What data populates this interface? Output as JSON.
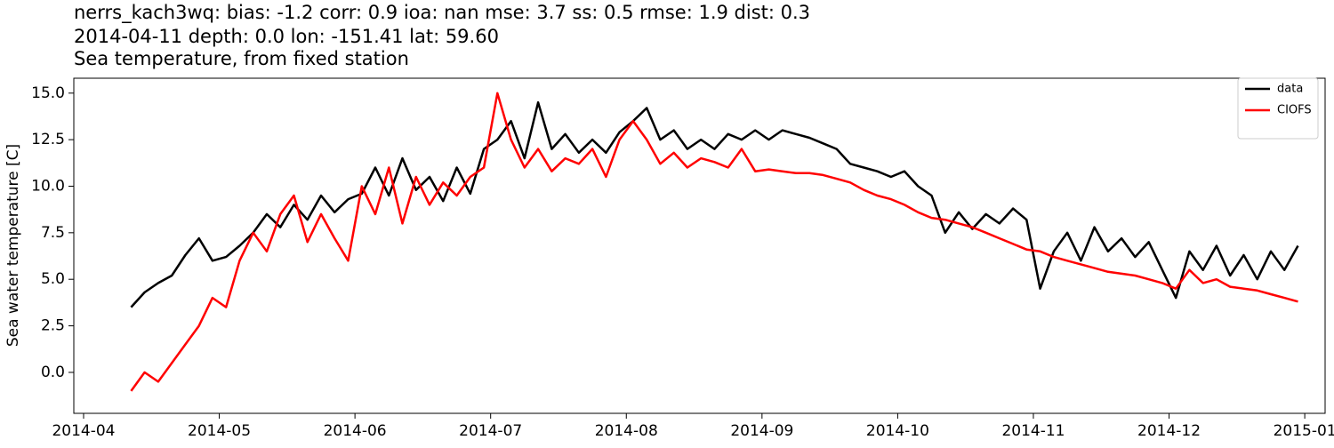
{
  "chart_data": {
    "type": "line",
    "title": "nerrs_kach3wq: bias: -1.2  corr: 0.9  ioa: nan  mse: 3.7  ss: 0.5  rmse: 1.9  dist: 0.3",
    "subtitle": "2014-04-11 depth: 0.0 lon: -151.41 lat: 59.60",
    "subtitle2": "Sea temperature, from fixed station",
    "y_label": "Sea water temperature [C]",
    "x": [
      0.35,
      0.45,
      0.55,
      0.65,
      0.75,
      0.85,
      0.95,
      1.05,
      1.15,
      1.25,
      1.35,
      1.45,
      1.55,
      1.65,
      1.75,
      1.85,
      1.95,
      2.05,
      2.15,
      2.25,
      2.35,
      2.45,
      2.55,
      2.65,
      2.75,
      2.85,
      2.95,
      3.05,
      3.15,
      3.25,
      3.35,
      3.45,
      3.55,
      3.65,
      3.75,
      3.85,
      3.95,
      4.05,
      4.15,
      4.25,
      4.35,
      4.45,
      4.55,
      4.65,
      4.75,
      4.85,
      4.95,
      5.05,
      5.15,
      5.25,
      5.35,
      5.45,
      5.55,
      5.65,
      5.75,
      5.85,
      5.95,
      6.05,
      6.15,
      6.25,
      6.35,
      6.45,
      6.55,
      6.65,
      6.75,
      6.85,
      6.95,
      7.05,
      7.15,
      7.25,
      7.35,
      7.45,
      7.55,
      7.65,
      7.75,
      7.85,
      7.95,
      8.05,
      8.15,
      8.25,
      8.35,
      8.45,
      8.55,
      8.65,
      8.75,
      8.85,
      8.95
    ],
    "series": [
      {
        "name": "data",
        "color": "#000000",
        "values": [
          3.5,
          4.3,
          4.8,
          5.2,
          6.3,
          7.2,
          6.0,
          6.2,
          6.8,
          7.5,
          8.5,
          7.8,
          9.0,
          8.2,
          9.5,
          8.6,
          9.3,
          9.6,
          11.0,
          9.5,
          11.5,
          9.8,
          10.5,
          9.2,
          11.0,
          9.6,
          12.0,
          12.5,
          13.5,
          11.5,
          14.5,
          12.0,
          12.8,
          11.8,
          12.5,
          11.8,
          12.9,
          13.5,
          14.2,
          12.5,
          13.0,
          12.0,
          12.5,
          12.0,
          12.8,
          12.5,
          13.0,
          12.5,
          13.0,
          12.8,
          12.6,
          12.3,
          12.0,
          11.2,
          11.0,
          10.8,
          10.5,
          10.8,
          10.0,
          9.5,
          7.5,
          8.6,
          7.7,
          8.5,
          8.0,
          8.8,
          8.2,
          4.5,
          6.5,
          7.5,
          6.0,
          7.8,
          6.5,
          7.2,
          6.2,
          7.0,
          5.5,
          4.0,
          6.5,
          5.5,
          6.8,
          5.2,
          6.3,
          5.0,
          6.5,
          5.5,
          6.8
        ]
      },
      {
        "name": "CIOFS",
        "color": "#ff0000",
        "values": [
          -1.0,
          0.0,
          -0.5,
          0.5,
          1.5,
          2.5,
          4.0,
          3.5,
          6.0,
          7.5,
          6.5,
          8.5,
          9.5,
          7.0,
          8.5,
          7.2,
          6.0,
          10.0,
          8.5,
          11.0,
          8.0,
          10.5,
          9.0,
          10.2,
          9.5,
          10.5,
          11.0,
          15.0,
          12.5,
          11.0,
          12.0,
          10.8,
          11.5,
          11.2,
          12.0,
          10.5,
          12.5,
          13.5,
          12.5,
          11.2,
          11.8,
          11.0,
          11.5,
          11.3,
          11.0,
          12.0,
          10.8,
          10.9,
          10.8,
          10.7,
          10.7,
          10.6,
          10.4,
          10.2,
          9.8,
          9.5,
          9.3,
          9.0,
          8.6,
          8.3,
          8.2,
          8.0,
          7.8,
          7.5,
          7.2,
          6.9,
          6.6,
          6.5,
          6.2,
          6.0,
          5.8,
          5.6,
          5.4,
          5.3,
          5.2,
          5.0,
          4.8,
          4.5,
          5.5,
          4.8,
          5.0,
          4.6,
          4.5,
          4.4,
          4.2,
          4.0,
          3.8
        ]
      }
    ],
    "xlim": [
      -0.072,
      9.15
    ],
    "xticks": [
      {
        "value": 0,
        "label": "2014-04"
      },
      {
        "value": 1,
        "label": "2014-05"
      },
      {
        "value": 2,
        "label": "2014-06"
      },
      {
        "value": 3,
        "label": "2014-07"
      },
      {
        "value": 4,
        "label": "2014-08"
      },
      {
        "value": 5,
        "label": "2014-09"
      },
      {
        "value": 6,
        "label": "2014-10"
      },
      {
        "value": 7,
        "label": "2014-11"
      },
      {
        "value": 8,
        "label": "2014-12"
      },
      {
        "value": 9,
        "label": "2015-01"
      }
    ],
    "ylim": [
      -2.2,
      15.8
    ],
    "yticks": [
      {
        "value": 0,
        "label": "0.0"
      },
      2.5,
      {
        "value": 5,
        "label": "5.0"
      },
      7.5,
      {
        "value": 10,
        "label": "10.0"
      },
      12.5,
      {
        "value": 15,
        "label": "15.0"
      }
    ],
    "grid": false,
    "legend": "upper right"
  }
}
